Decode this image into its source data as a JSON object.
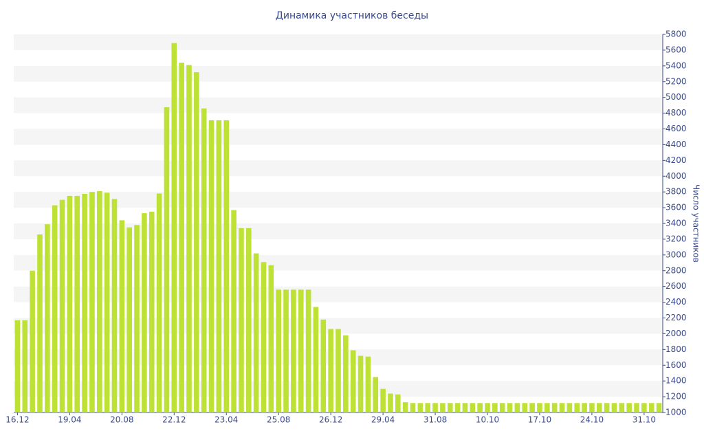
{
  "chart_data": {
    "type": "bar",
    "title": "Динамика участников беседы",
    "y_label": "Число участников",
    "color": "#bde134",
    "grid": true,
    "categories": [
      "16.12",
      null,
      null,
      null,
      null,
      null,
      null,
      "19.04",
      null,
      null,
      null,
      null,
      null,
      null,
      "20.08",
      null,
      null,
      null,
      null,
      null,
      null,
      "22.12",
      null,
      null,
      null,
      null,
      null,
      null,
      "23.04",
      null,
      null,
      null,
      null,
      null,
      null,
      "25.08",
      null,
      null,
      null,
      null,
      null,
      null,
      "26.12",
      null,
      null,
      null,
      null,
      null,
      null,
      "29.04",
      null,
      null,
      null,
      null,
      null,
      null,
      "31.08",
      null,
      null,
      null,
      null,
      null,
      null,
      "10.10",
      null,
      null,
      null,
      null,
      null,
      null,
      "17.10",
      null,
      null,
      null,
      null,
      null,
      null,
      "24.10",
      null,
      null,
      null,
      null,
      null,
      null,
      "31.10",
      null,
      null
    ],
    "values": [
      2170,
      2170,
      2800,
      3260,
      3390,
      3630,
      3700,
      3750,
      3750,
      3775,
      3800,
      3810,
      3790,
      3710,
      3440,
      3350,
      3380,
      3530,
      3550,
      3780,
      4875,
      5690,
      5440,
      5410,
      5320,
      4860,
      4710,
      4710,
      4710,
      3570,
      3340,
      3340,
      3020,
      2910,
      2870,
      2560,
      2560,
      2560,
      2560,
      2560,
      2340,
      2180,
      2060,
      2060,
      1980,
      1790,
      1720,
      1710,
      1450,
      1300,
      1240,
      1230,
      1130,
      1120,
      1120,
      1120,
      1120,
      1120,
      1120,
      1120,
      1120,
      1120,
      1120,
      1120,
      1120,
      1120,
      1120,
      1120,
      1120,
      1120,
      1120,
      1120,
      1120,
      1120,
      1120,
      1120,
      1120,
      1120,
      1120,
      1120,
      1120,
      1120,
      1120,
      1120,
      1120,
      1120,
      1120
    ],
    "ylim": [
      1000,
      5800
    ],
    "yticks": [
      1000,
      1200,
      1400,
      1600,
      1800,
      2000,
      2200,
      2400,
      2600,
      2800,
      3000,
      3200,
      3400,
      3600,
      3800,
      4000,
      4200,
      4400,
      4600,
      4800,
      5000,
      5200,
      5400,
      5600,
      5800
    ]
  }
}
